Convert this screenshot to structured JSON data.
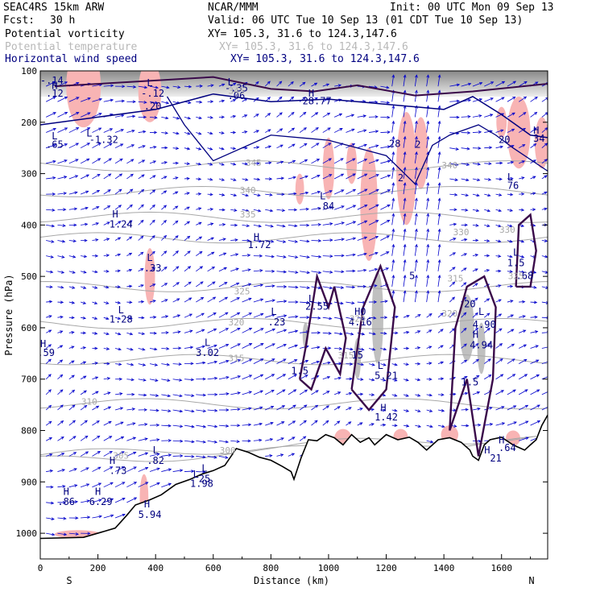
{
  "header": {
    "model": "SEAC4RS 15km ARW",
    "org": "NCAR/MMM",
    "init": "Init: 00 UTC Mon 09 Sep 13",
    "fcst_label": "Fcst:",
    "fcst_value": "30 h",
    "valid": "Valid: 06 UTC Tue 10 Sep 13 (01 CDT Tue 10 Sep 13)",
    "fields": [
      {
        "name": "Potential vorticity",
        "xy": "XY= 105.3, 31.6 to 124.3,147.6"
      },
      {
        "name": "Potential temperature",
        "xy": "XY= 105.3, 31.6 to 124.3,147.6"
      },
      {
        "name": "Horizontal wind speed",
        "xy": "XY= 105.3, 31.6 to 124.3,147.6"
      }
    ]
  },
  "colors": {
    "pv": "#000080",
    "theta": "#a8a8a8",
    "wind": "#0000cc",
    "pink": "#f8b4b4",
    "terrain": "#000000",
    "thick": "#3a0a4a"
  },
  "chart_data": {
    "type": "cross-section",
    "xlabel": "Distance (km)",
    "ylabel": "Pressure (hPa)",
    "xlim": [
      0,
      1760
    ],
    "ylim": [
      1050,
      100
    ],
    "x_ticks": [
      0,
      200,
      400,
      600,
      800,
      1000,
      1200,
      1400,
      1600
    ],
    "y_ticks": [
      100,
      200,
      300,
      400,
      500,
      600,
      700,
      800,
      900,
      1000
    ],
    "left_end_label": "S",
    "right_end_label": "N",
    "terrain": [
      [
        0,
        1010
      ],
      [
        150,
        1008
      ],
      [
        260,
        990
      ],
      [
        300,
        965
      ],
      [
        330,
        945
      ],
      [
        380,
        935
      ],
      [
        420,
        925
      ],
      [
        470,
        905
      ],
      [
        520,
        895
      ],
      [
        560,
        885
      ],
      [
        600,
        878
      ],
      [
        640,
        868
      ],
      [
        680,
        835
      ],
      [
        720,
        842
      ],
      [
        760,
        852
      ],
      [
        800,
        858
      ],
      [
        840,
        870
      ],
      [
        870,
        880
      ],
      [
        880,
        895
      ],
      [
        905,
        853
      ],
      [
        930,
        818
      ],
      [
        960,
        820
      ],
      [
        990,
        808
      ],
      [
        1020,
        814
      ],
      [
        1050,
        828
      ],
      [
        1080,
        808
      ],
      [
        1110,
        823
      ],
      [
        1140,
        814
      ],
      [
        1160,
        828
      ],
      [
        1200,
        808
      ],
      [
        1240,
        818
      ],
      [
        1280,
        813
      ],
      [
        1310,
        823
      ],
      [
        1340,
        838
      ],
      [
        1380,
        818
      ],
      [
        1420,
        814
      ],
      [
        1460,
        823
      ],
      [
        1490,
        838
      ],
      [
        1500,
        850
      ],
      [
        1520,
        858
      ],
      [
        1540,
        828
      ],
      [
        1560,
        818
      ],
      [
        1600,
        813
      ],
      [
        1640,
        828
      ],
      [
        1680,
        838
      ],
      [
        1700,
        828
      ],
      [
        1720,
        818
      ],
      [
        1740,
        790
      ],
      [
        1760,
        770
      ]
    ],
    "theta_labels": [
      {
        "x": 680,
        "p": 145,
        "text": "345"
      },
      {
        "x": 740,
        "p": 285,
        "text": "345"
      },
      {
        "x": 720,
        "p": 338,
        "text": "340"
      },
      {
        "x": 1420,
        "p": 290,
        "text": "340"
      },
      {
        "x": 720,
        "p": 385,
        "text": "335"
      },
      {
        "x": 1460,
        "p": 420,
        "text": "330"
      },
      {
        "x": 1620,
        "p": 415,
        "text": "330"
      },
      {
        "x": 700,
        "p": 535,
        "text": "325"
      },
      {
        "x": 1650,
        "p": 505,
        "text": "325"
      },
      {
        "x": 1440,
        "p": 510,
        "text": "315"
      },
      {
        "x": 680,
        "p": 595,
        "text": "320"
      },
      {
        "x": 1100,
        "p": 588,
        "text": "320"
      },
      {
        "x": 1420,
        "p": 578,
        "text": "320"
      },
      {
        "x": 680,
        "p": 665,
        "text": "315"
      },
      {
        "x": 1060,
        "p": 660,
        "text": "315"
      },
      {
        "x": 170,
        "p": 750,
        "text": "310"
      },
      {
        "x": 280,
        "p": 855,
        "text": "305"
      },
      {
        "x": 650,
        "p": 845,
        "text": "300"
      }
    ],
    "pv_labels": [
      {
        "x": 40,
        "p": 125,
        "text": "-.14"
      },
      {
        "x": 50,
        "p": 150,
        "text": ".12"
      },
      {
        "x": 50,
        "p": 250,
        "text": ".65"
      },
      {
        "x": 220,
        "p": 240,
        "text": "-1.32"
      },
      {
        "x": 390,
        "p": 150,
        "text": "-.12"
      },
      {
        "x": 390,
        "p": 175,
        "text": ".20"
      },
      {
        "x": 680,
        "p": 140,
        "text": "-.35"
      },
      {
        "x": 680,
        "p": 155,
        "text": ".06"
      },
      {
        "x": 960,
        "p": 165,
        "text": "28.77"
      },
      {
        "x": 1230,
        "p": 248,
        "text": "28"
      },
      {
        "x": 1310,
        "p": 250,
        "text": "2"
      },
      {
        "x": 1250,
        "p": 315,
        "text": "2"
      },
      {
        "x": 1730,
        "p": 238,
        "text": "34"
      },
      {
        "x": 1610,
        "p": 240,
        "text": "20"
      },
      {
        "x": 1640,
        "p": 330,
        "text": "76"
      },
      {
        "x": 280,
        "p": 405,
        "text": "1.24"
      },
      {
        "x": 990,
        "p": 370,
        "text": ".84"
      },
      {
        "x": 760,
        "p": 445,
        "text": "1.72"
      },
      {
        "x": 390,
        "p": 490,
        "text": ".33"
      },
      {
        "x": 1290,
        "p": 505,
        "text": "5"
      },
      {
        "x": 1650,
        "p": 480,
        "text": "1.5"
      },
      {
        "x": 1680,
        "p": 505,
        "text": ".68"
      },
      {
        "x": 960,
        "p": 565,
        "text": "2.55"
      },
      {
        "x": 1110,
        "p": 595,
        "text": "4.16"
      },
      {
        "x": 1120,
        "p": 575,
        "text": "0"
      },
      {
        "x": 1540,
        "p": 600,
        "text": "4.90"
      },
      {
        "x": 1490,
        "p": 560,
        "text": "20"
      },
      {
        "x": 1530,
        "p": 640,
        "text": "4.94"
      },
      {
        "x": 280,
        "p": 590,
        "text": "1.28"
      },
      {
        "x": 820,
        "p": 595,
        "text": ".23"
      },
      {
        "x": 20,
        "p": 655,
        "text": ".59"
      },
      {
        "x": 580,
        "p": 655,
        "text": "3.02"
      },
      {
        "x": 1100,
        "p": 660,
        "text": "15"
      },
      {
        "x": 900,
        "p": 690,
        "text": "1.5"
      },
      {
        "x": 1200,
        "p": 700,
        "text": "5.21"
      },
      {
        "x": 1490,
        "p": 712,
        "text": "1.5"
      },
      {
        "x": 1200,
        "p": 780,
        "text": "1.42"
      },
      {
        "x": 270,
        "p": 885,
        "text": ".73"
      },
      {
        "x": 400,
        "p": 865,
        "text": ".82"
      },
      {
        "x": 90,
        "p": 945,
        "text": ".86"
      },
      {
        "x": 210,
        "p": 945,
        "text": "6.29"
      },
      {
        "x": 380,
        "p": 970,
        "text": "5.94"
      },
      {
        "x": 560,
        "p": 910,
        "text": "1.98"
      },
      {
        "x": 570,
        "p": 900,
        "text": "25"
      },
      {
        "x": 1580,
        "p": 860,
        "text": "21"
      },
      {
        "x": 1620,
        "p": 840,
        "text": ".64"
      }
    ],
    "hl_markers": [
      {
        "x": 50,
        "p": 135,
        "text": "H"
      },
      {
        "x": 50,
        "p": 233,
        "text": "L"
      },
      {
        "x": 170,
        "p": 228,
        "text": "L"
      },
      {
        "x": 380,
        "p": 130,
        "text": "L"
      },
      {
        "x": 660,
        "p": 128,
        "text": "L"
      },
      {
        "x": 940,
        "p": 150,
        "text": "H"
      },
      {
        "x": 1720,
        "p": 222,
        "text": "H"
      },
      {
        "x": 1630,
        "p": 313,
        "text": "L"
      },
      {
        "x": 260,
        "p": 385,
        "text": "H"
      },
      {
        "x": 980,
        "p": 350,
        "text": "L"
      },
      {
        "x": 750,
        "p": 430,
        "text": "H"
      },
      {
        "x": 380,
        "p": 470,
        "text": "L"
      },
      {
        "x": 1650,
        "p": 460,
        "text": "L"
      },
      {
        "x": 940,
        "p": 550,
        "text": "L"
      },
      {
        "x": 1100,
        "p": 575,
        "text": "H"
      },
      {
        "x": 1530,
        "p": 575,
        "text": "L"
      },
      {
        "x": 1510,
        "p": 620,
        "text": "H"
      },
      {
        "x": 280,
        "p": 572,
        "text": "L"
      },
      {
        "x": 810,
        "p": 575,
        "text": "L"
      },
      {
        "x": 10,
        "p": 638,
        "text": "H"
      },
      {
        "x": 580,
        "p": 635,
        "text": "L"
      },
      {
        "x": 1180,
        "p": 680,
        "text": "L"
      },
      {
        "x": 1190,
        "p": 762,
        "text": "H"
      },
      {
        "x": 250,
        "p": 865,
        "text": "H"
      },
      {
        "x": 400,
        "p": 845,
        "text": "L"
      },
      {
        "x": 90,
        "p": 925,
        "text": "H"
      },
      {
        "x": 200,
        "p": 925,
        "text": "H"
      },
      {
        "x": 370,
        "p": 950,
        "text": "H"
      },
      {
        "x": 540,
        "p": 892,
        "text": "L"
      },
      {
        "x": 570,
        "p": 880,
        "text": "L"
      },
      {
        "x": 1550,
        "p": 845,
        "text": "H"
      },
      {
        "x": 1600,
        "p": 825,
        "text": "H"
      }
    ]
  }
}
